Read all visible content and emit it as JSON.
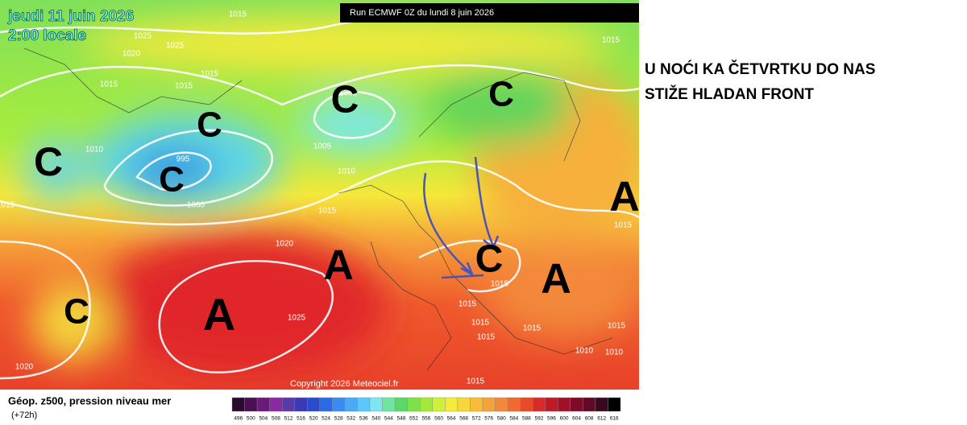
{
  "header": {
    "date": "jeudi 11 juin 2026",
    "time": "2:00 locale",
    "run": "Run ECMWF 0Z du lundi 8 juin 2026"
  },
  "annotation": {
    "lines": [
      "U NOĆI KA ČETVRTKU DO NAS",
      "STIŽE HLADAN FRONT"
    ]
  },
  "map": {
    "isobar_labels": [
      "1015",
      "1025",
      "1020",
      "1025",
      "1015",
      "1015",
      "1015",
      "1005",
      "1010",
      "995",
      "1000",
      "1005",
      "1010",
      "1015",
      "1020",
      "1025",
      "1015",
      "1015",
      "1015",
      "1015",
      "1015",
      "1015",
      "1015",
      "1015",
      "1015",
      "1010",
      "1010",
      "1015",
      "1020"
    ],
    "centers": [
      "C",
      "C",
      "C",
      "C",
      "C",
      "C",
      "C",
      "A",
      "A",
      "A",
      "A"
    ],
    "copyright": "Copyright 2026 Meteociel.fr"
  },
  "legend": {
    "title": "Géop. z500, pression niveau mer",
    "lead": "(+72h)",
    "scale": [
      496,
      500,
      504,
      508,
      512,
      516,
      520,
      524,
      528,
      532,
      536,
      540,
      544,
      548,
      552,
      556,
      560,
      564,
      568,
      572,
      576,
      580,
      584,
      588,
      592,
      596,
      600,
      604,
      608,
      612,
      616
    ]
  }
}
